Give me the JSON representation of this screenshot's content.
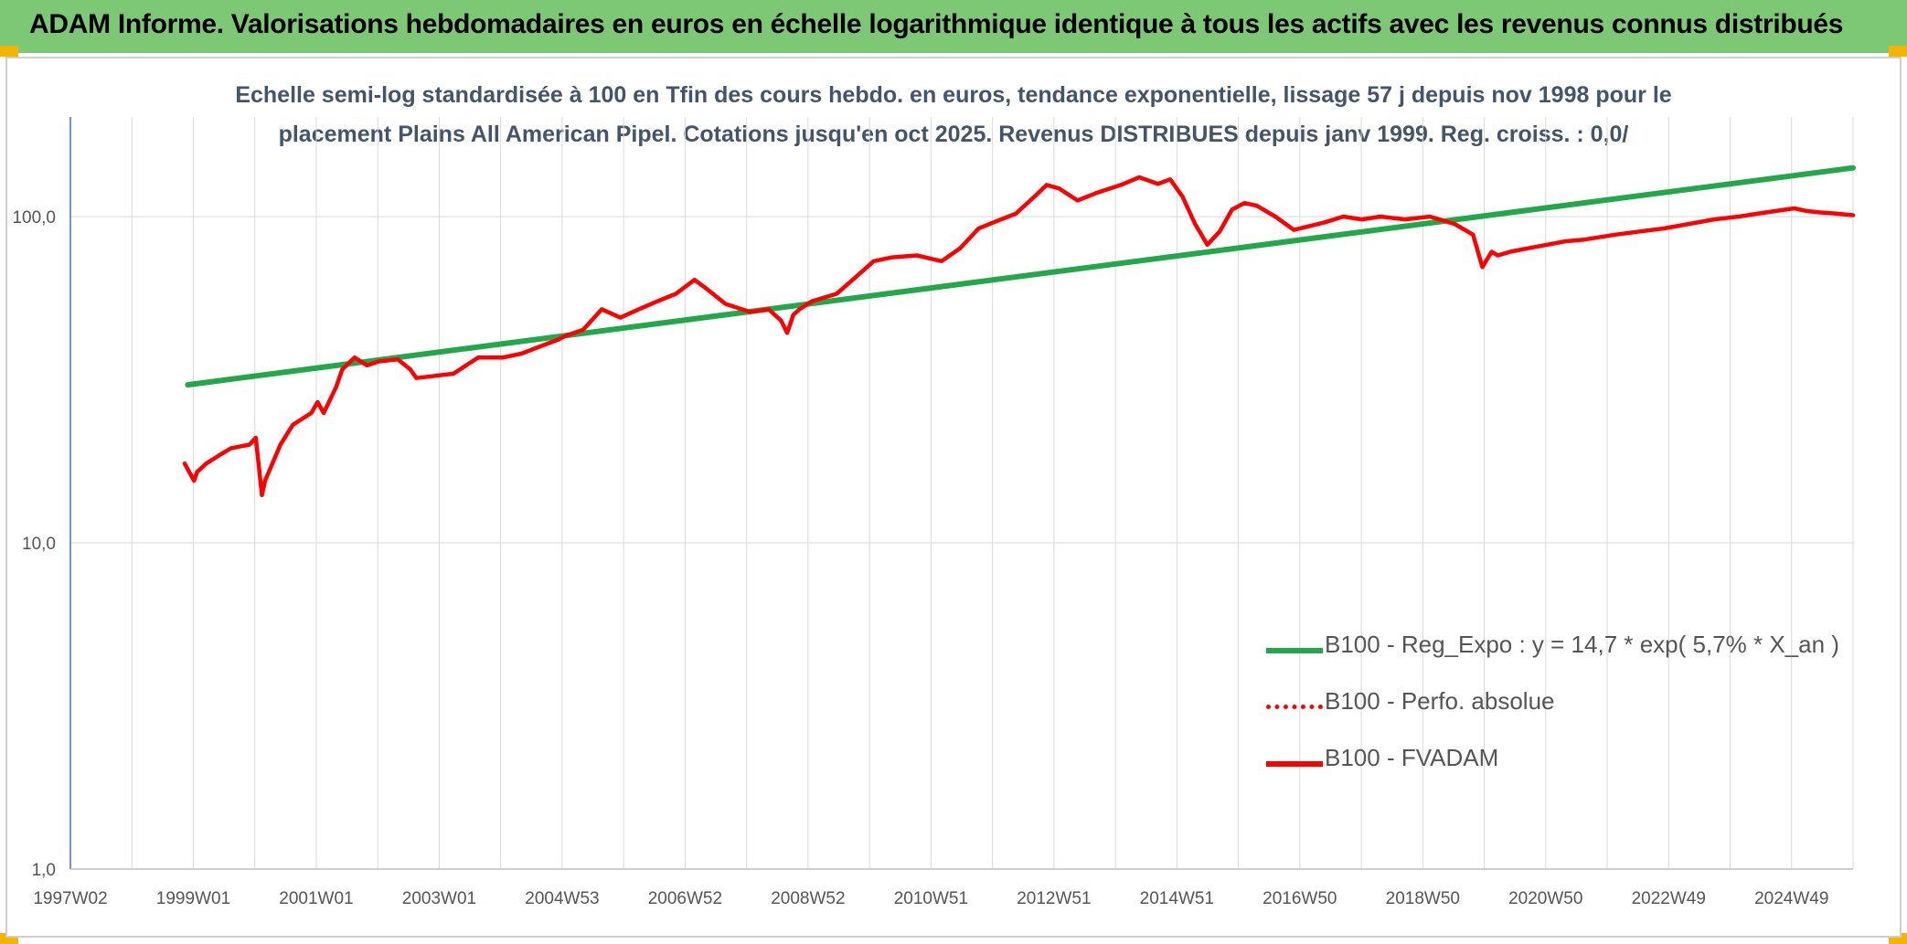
{
  "header": {
    "title": "ADAM Informe. Valorisations hebdomadaires en euros en échelle logarithmique identique à tous les actifs avec les revenus connus distribués",
    "bg_color": "#7dc874"
  },
  "chart_data": {
    "type": "line",
    "title_line1": "Echelle semi-log standardisée à 100 en Tfin des cours hebdo. en euros, tendance exponentielle, lissage 57 j depuis nov 1998 pour le",
    "title_line2": "placement Plains All American Pipel. Cotations jusqu'en oct 2025. Revenus DISTRIBUES depuis janv 1999. Reg. croiss. : 0,0/",
    "y_scale": "log",
    "ylim": [
      1,
      200
    ],
    "y_ticks": [
      "1,0",
      "10,0",
      "100,0"
    ],
    "x_range": [
      1997.0,
      2025.85
    ],
    "x_tick_labels": [
      "1997W02",
      "1999W01",
      "2001W01",
      "2003W01",
      "2004W53",
      "2006W52",
      "2008W52",
      "2010W51",
      "2012W51",
      "2014W51",
      "2016W50",
      "2018W50",
      "2020W50",
      "2022W49",
      "2024W49"
    ],
    "grid": "vertical and horizontal",
    "legend_position": "bottom-right",
    "series": [
      {
        "name": "B100 - Reg_Expo : y = 14,7 * exp( 5,7% *  X_an )",
        "color": "#22a84a",
        "style": "solid",
        "x": [
          1998.9,
          2025.85
        ],
        "y": [
          30.5,
          141
        ]
      },
      {
        "name": "B100 - Perfo. absolue",
        "color": "#ff0000",
        "style": "dotted",
        "x": [],
        "y": []
      },
      {
        "name": "B100 - FVADAM",
        "color": "#ff0000",
        "style": "solid",
        "x": [
          1998.85,
          1999.0,
          1999.05,
          1999.2,
          1999.4,
          1999.6,
          1999.9,
          2000.0,
          2000.1,
          2000.15,
          2000.4,
          2000.6,
          2000.9,
          2001.0,
          2001.1,
          2001.3,
          2001.4,
          2001.6,
          2001.8,
          2002.0,
          2002.3,
          2002.5,
          2002.6,
          2002.9,
          2003.2,
          2003.6,
          2004.0,
          2004.3,
          2004.6,
          2004.9,
          2005.0,
          2005.3,
          2005.6,
          2005.9,
          2006.2,
          2006.5,
          2006.8,
          2007.1,
          2007.3,
          2007.6,
          2008.0,
          2008.3,
          2008.5,
          2008.6,
          2008.7,
          2008.8,
          2009.0,
          2009.4,
          2009.7,
          2010.0,
          2010.3,
          2010.7,
          2011.1,
          2011.4,
          2011.7,
          2012.0,
          2012.3,
          2012.6,
          2012.8,
          2013.0,
          2013.3,
          2013.6,
          2014.0,
          2014.3,
          2014.6,
          2014.8,
          2015.0,
          2015.2,
          2015.4,
          2015.6,
          2015.8,
          2016.0,
          2016.2,
          2016.5,
          2016.8,
          2017.0,
          2017.3,
          2017.6,
          2017.9,
          2018.2,
          2018.6,
          2019.0,
          2019.4,
          2019.7,
          2019.85,
          2020.0,
          2020.1,
          2020.3,
          2020.6,
          2020.9,
          2021.2,
          2021.5,
          2022.0,
          2022.4,
          2022.8,
          2023.2,
          2023.6,
          2024.0,
          2024.3,
          2024.6,
          2024.9,
          2025.1,
          2025.3,
          2025.6,
          2025.85
        ],
        "y": [
          17.5,
          15.5,
          16.5,
          17.5,
          18.5,
          19.5,
          20,
          21,
          14,
          15.5,
          20,
          23,
          25,
          27,
          25,
          30,
          34,
          37,
          35,
          36,
          36.5,
          34,
          32,
          32.5,
          33,
          37,
          37,
          38,
          40,
          42,
          43,
          45,
          52,
          49,
          52,
          55,
          58,
          64,
          60,
          54,
          51,
          52,
          48,
          44,
          50,
          52,
          55,
          58,
          65,
          73,
          75,
          76,
          73,
          80,
          92,
          97,
          102,
          115,
          125,
          122,
          112,
          118,
          125,
          132,
          126,
          130,
          115,
          95,
          82,
          90,
          105,
          110,
          108,
          100,
          91,
          93,
          96,
          100,
          98,
          100,
          98,
          100,
          95,
          88,
          70,
          78,
          76,
          78,
          80,
          82,
          84,
          85,
          88,
          90,
          92,
          95,
          98,
          100,
          102,
          104,
          106,
          104,
          103,
          102,
          101
        ]
      }
    ]
  }
}
